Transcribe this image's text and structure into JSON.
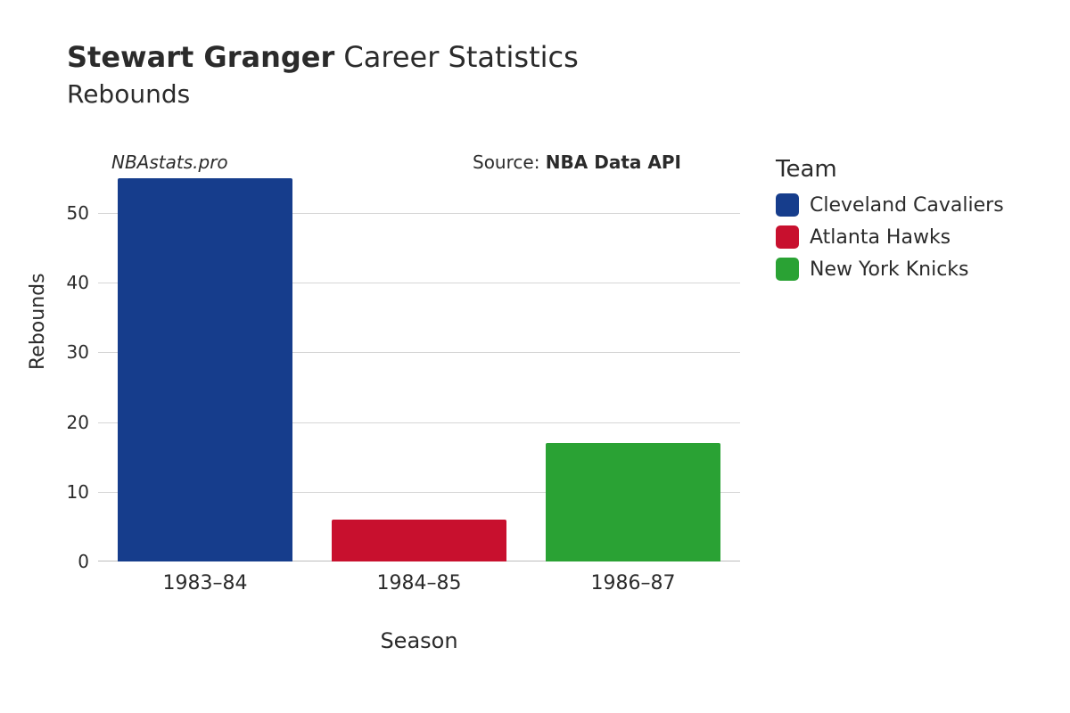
{
  "title": {
    "player_name": "Stewart Granger",
    "suffix": "Career Statistics",
    "subtitle": "Rebounds",
    "fontsize_main": 32,
    "fontsize_sub": 28,
    "color": "#2b2b2b"
  },
  "watermark": {
    "text": "NBAstats.pro",
    "fontsize": 20,
    "italic": true
  },
  "source": {
    "prefix": "Source: ",
    "name": "NBA Data API",
    "fontsize": 20
  },
  "legend": {
    "title": "Team",
    "title_fontsize": 26,
    "item_fontsize": 22,
    "items": [
      {
        "label": "Cleveland Cavaliers",
        "color": "#163d8c"
      },
      {
        "label": "Atlanta Hawks",
        "color": "#c8102e"
      },
      {
        "label": "New York Knicks",
        "color": "#2aa234"
      }
    ]
  },
  "chart": {
    "type": "bar",
    "xlabel": "Season",
    "ylabel": "Rebounds",
    "label_fontsize": 22,
    "tick_fontsize": 20,
    "background_color": "#ffffff",
    "grid_color": "#d6d6d6",
    "ylim": [
      0,
      55
    ],
    "ytick_step": 10,
    "yticks": [
      0,
      10,
      20,
      30,
      40,
      50
    ],
    "categories": [
      "1983–84",
      "1984–85",
      "1986–87"
    ],
    "values": [
      55,
      6,
      17
    ],
    "bar_colors": [
      "#163d8c",
      "#c8102e",
      "#2aa234"
    ],
    "bar_width": 0.82
  }
}
